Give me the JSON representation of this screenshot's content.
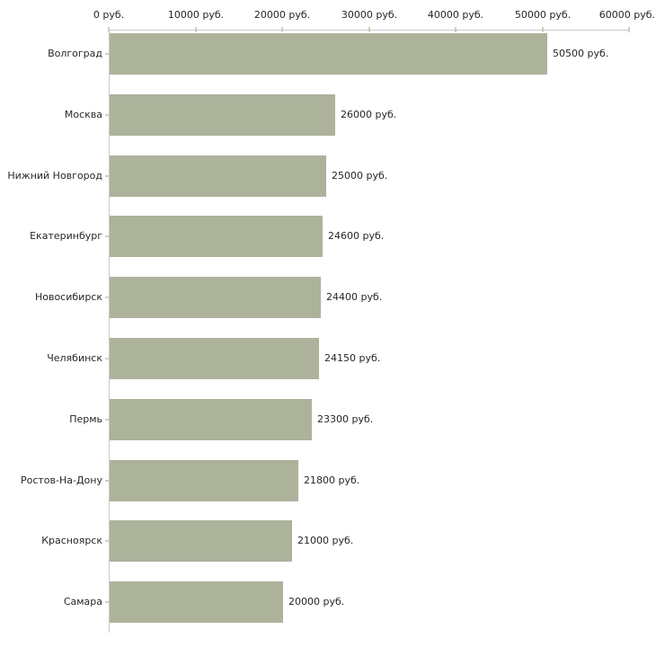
{
  "chart_data": {
    "type": "bar",
    "orientation": "horizontal",
    "title": "",
    "legend": "none",
    "grid": false,
    "categories": [
      "Волгоград",
      "Москва",
      "Нижний Новгород",
      "Екатеринбург",
      "Новосибирск",
      "Челябинск",
      "Пермь",
      "Ростов-На-Дону",
      "Красноярск",
      "Самара"
    ],
    "values": [
      50500,
      26000,
      25000,
      24600,
      24400,
      24150,
      23300,
      21800,
      21000,
      20000
    ],
    "bar_labels": [
      "50500 руб.",
      "26000 руб.",
      "25000 руб.",
      "24600 руб.",
      "24400 руб.",
      "24150 руб.",
      "23300 руб.",
      "21800 руб.",
      "21000 руб.",
      "20000 руб."
    ],
    "x_axis": {
      "position": "top",
      "min": 0,
      "max": 60000,
      "ticks": [
        0,
        10000,
        20000,
        30000,
        40000,
        50000,
        60000
      ],
      "tick_labels": [
        "0 руб.",
        "10000 руб.",
        "20000 руб.",
        "30000 руб.",
        "40000 руб.",
        "50000 руб.",
        "60000 руб."
      ]
    },
    "colors": {
      "bar": "#adb39b",
      "axis_line": "#c8c8c8",
      "tick": "#d2d1b5",
      "text": "#262626",
      "background": "#ffffff"
    }
  }
}
